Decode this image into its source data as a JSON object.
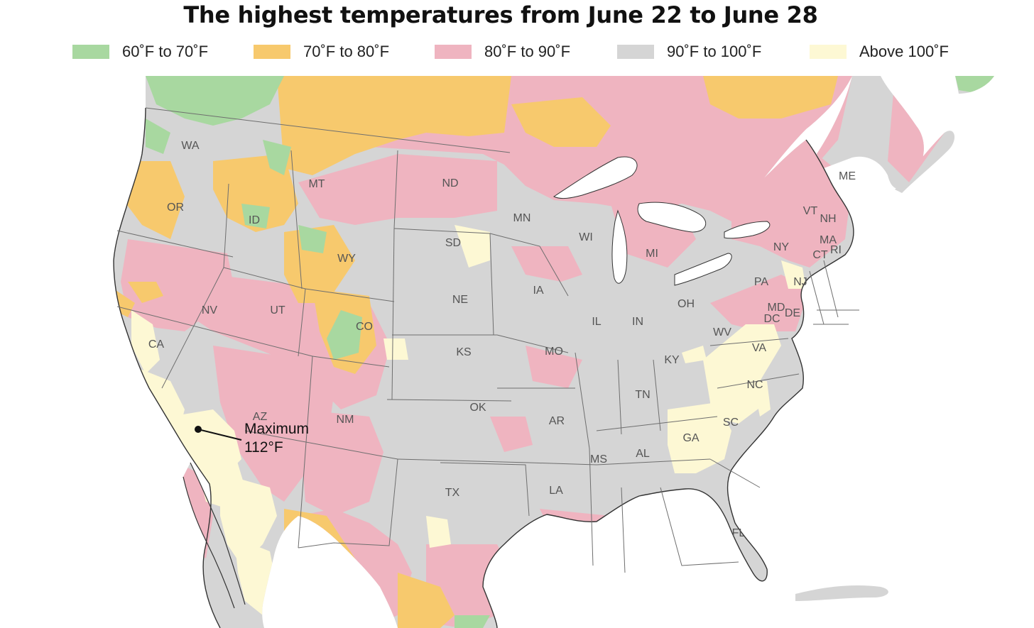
{
  "title": "The highest temperatures from June 22 to June 28",
  "legend": [
    {
      "label": "60˚F to 70˚F",
      "color": "#a8d8a0"
    },
    {
      "label": "70˚F to 80˚F",
      "color": "#f7c96d"
    },
    {
      "label": "80˚F to 90˚F",
      "color": "#efb4c0"
    },
    {
      "label": "90˚F to 100˚F",
      "color": "#d5d5d5"
    },
    {
      "label": "Above 100˚F",
      "color": "#fdf8d4"
    }
  ],
  "colors": {
    "water": "#ffffff",
    "border": "#6e6e6e",
    "coast": "#333333"
  },
  "states": [
    "WA",
    "OR",
    "CA",
    "NV",
    "ID",
    "MT",
    "WY",
    "UT",
    "AZ",
    "CO",
    "NM",
    "ND",
    "SD",
    "NE",
    "KS",
    "OK",
    "TX",
    "MN",
    "IA",
    "MO",
    "AR",
    "LA",
    "WI",
    "IL",
    "IN",
    "MI",
    "OH",
    "KY",
    "TN",
    "MS",
    "AL",
    "GA",
    "FL",
    "SC",
    "NC",
    "VA",
    "WV",
    "PA",
    "NY",
    "VT",
    "NH",
    "ME",
    "MA",
    "CT",
    "RI",
    "NJ",
    "MD",
    "DE",
    "DC"
  ],
  "callout": {
    "line1": "Maximum",
    "line2": "112°F"
  }
}
